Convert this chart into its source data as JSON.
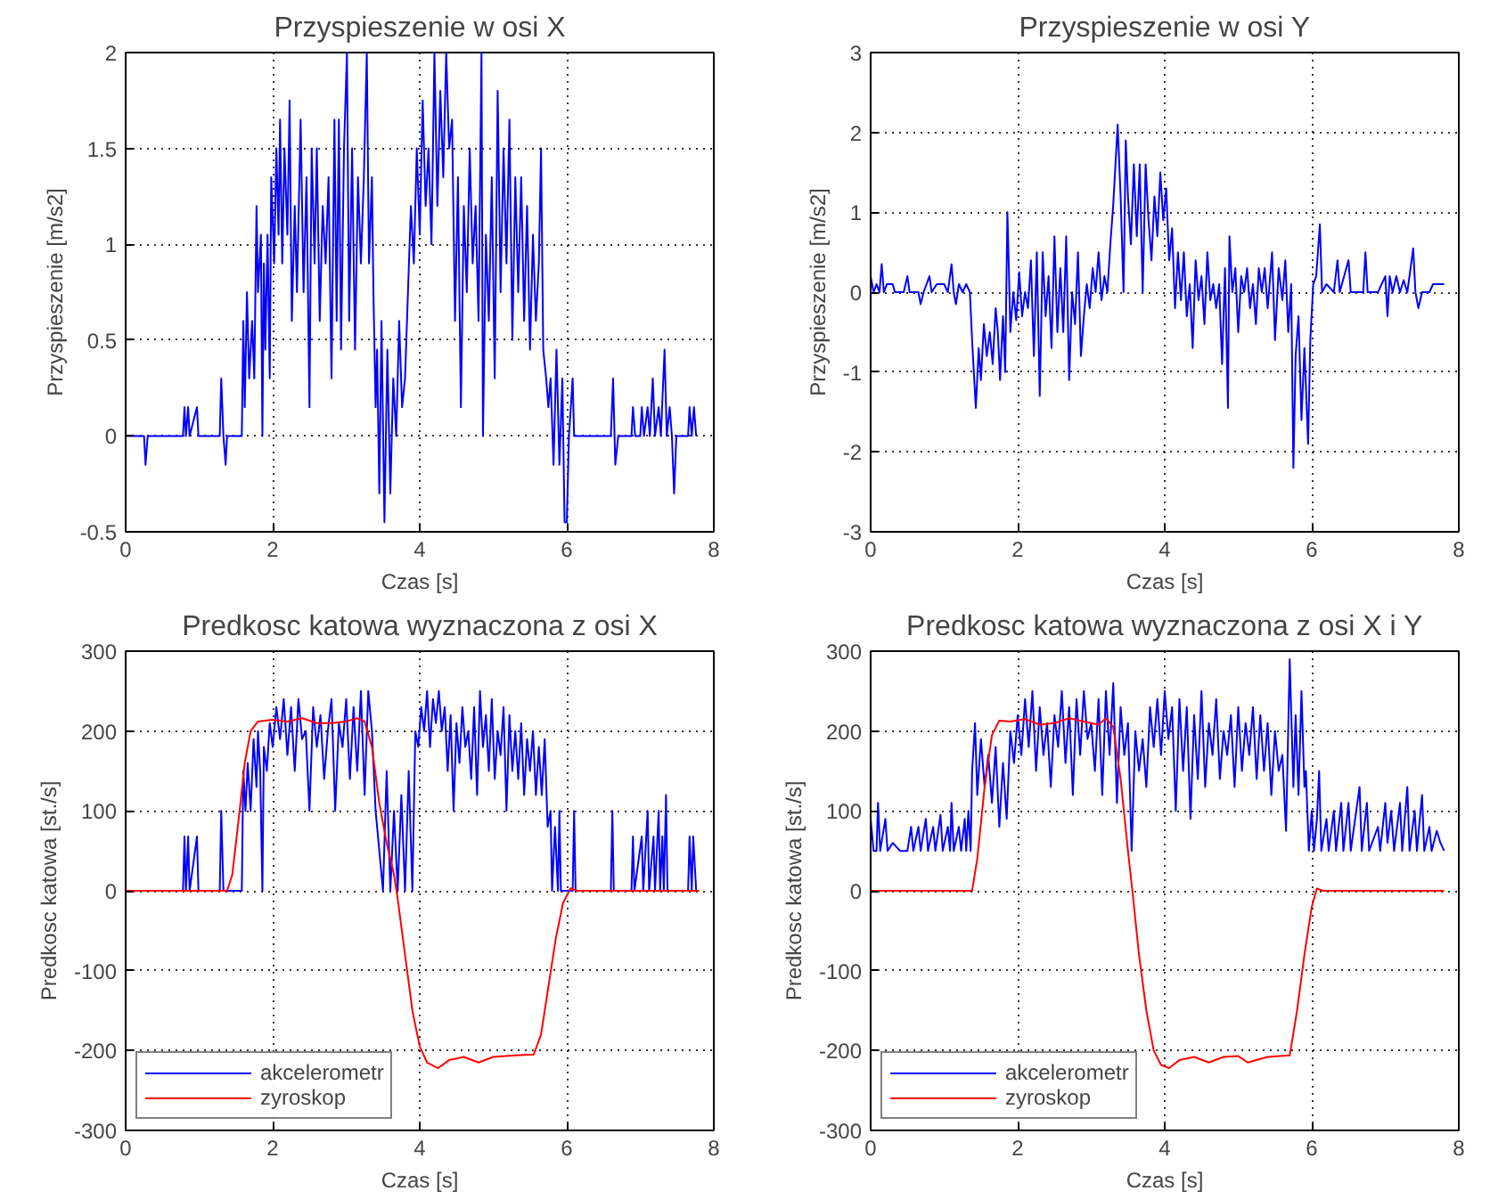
{
  "chart_data": [
    {
      "type": "line",
      "title": "Przyspieszenie w osi X",
      "xlabel": "Czas [s]",
      "ylabel": "Przyspieszenie [m/s2]",
      "xlim": [
        0,
        8
      ],
      "xticks": [
        0,
        2,
        4,
        6,
        8
      ],
      "ylim": [
        -0.5,
        2
      ],
      "yticks": [
        -0.5,
        0,
        0.5,
        1,
        1.5,
        2
      ],
      "grid": true,
      "legend": false,
      "series": [
        {
          "color": "#0000ff",
          "x": [
            0,
            0.25,
            0.27,
            0.3,
            0.78,
            0.8,
            0.82,
            0.85,
            0.87,
            0.97,
            0.99,
            1.28,
            1.3,
            1.33,
            1.36,
            1.38,
            1.58,
            1.6,
            1.62,
            1.65,
            1.68,
            1.72,
            1.75,
            1.78,
            1.8,
            1.84,
            1.86,
            1.88,
            1.9,
            1.93,
            1.96,
            1.98,
            2.02,
            2.05,
            2.08,
            2.1,
            2.13,
            2.16,
            2.2,
            2.23,
            2.26,
            2.3,
            2.33,
            2.38,
            2.42,
            2.46,
            2.5,
            2.53,
            2.57,
            2.6,
            2.64,
            2.68,
            2.72,
            2.76,
            2.8,
            2.84,
            2.87,
            2.9,
            2.93,
            2.97,
            3.01,
            3.04,
            3.08,
            3.12,
            3.16,
            3.2,
            3.24,
            3.28,
            3.31,
            3.35,
            3.37,
            3.4,
            3.42,
            3.45,
            3.48,
            3.52,
            3.56,
            3.6,
            3.64,
            3.68,
            3.72,
            3.76,
            3.8,
            3.84,
            3.88,
            3.92,
            3.96,
            4.0,
            4.04,
            4.08,
            4.12,
            4.16,
            4.2,
            4.24,
            4.28,
            4.32,
            4.36,
            4.4,
            4.44,
            4.48,
            4.52,
            4.56,
            4.6,
            4.64,
            4.68,
            4.72,
            4.76,
            4.8,
            4.84,
            4.86,
            4.9,
            4.94,
            4.98,
            5.02,
            5.06,
            5.1,
            5.14,
            5.18,
            5.22,
            5.26,
            5.3,
            5.34,
            5.38,
            5.42,
            5.46,
            5.5,
            5.54,
            5.58,
            5.62,
            5.65,
            5.68,
            5.72,
            5.75,
            5.78,
            5.82,
            5.86,
            5.9,
            5.94,
            5.97,
            6.0,
            6.03,
            6.08,
            6.1,
            6.6,
            6.63,
            6.66,
            6.7,
            6.88,
            6.9,
            6.93,
            7.0,
            7.02,
            7.05,
            7.1,
            7.13,
            7.17,
            7.2,
            7.25,
            7.28,
            7.33,
            7.36,
            7.4,
            7.43,
            7.46,
            7.49,
            7.65,
            7.67,
            7.7,
            7.73,
            7.76
          ],
          "values": [
            0,
            0,
            -0.15,
            0,
            0,
            0.15,
            0,
            0.15,
            0,
            0.15,
            0,
            0,
            0.3,
            0,
            -0.15,
            0,
            0,
            0.6,
            0.15,
            0.75,
            0.3,
            0.6,
            0.3,
            1.2,
            0.75,
            1.05,
            0,
            0.9,
            0.45,
            1.05,
            0.3,
            1.35,
            0.9,
            1.5,
            1.05,
            1.65,
            0.9,
            1.5,
            1.05,
            1.75,
            0.6,
            1.2,
            0.75,
            1.65,
            0.75,
            1.35,
            0.15,
            1.5,
            0.9,
            1.5,
            0.6,
            1.2,
            0.9,
            1.35,
            0.3,
            1.65,
            0.6,
            1.65,
            0.45,
            1.5,
            2.0,
            0.6,
            1.5,
            0.45,
            1.35,
            0.9,
            1.35,
            2.0,
            0.9,
            1.35,
            0.75,
            0.15,
            0.45,
            -0.3,
            0.6,
            -0.45,
            0.45,
            -0.3,
            0.3,
            0,
            0.6,
            0.15,
            0.3,
            0.75,
            1.2,
            0.9,
            1.5,
            1.05,
            1.75,
            1.2,
            1.5,
            1.0,
            2.0,
            1.2,
            1.8,
            1.35,
            2.0,
            1.5,
            1.65,
            0.6,
            1.35,
            0.15,
            1.2,
            0.75,
            1.5,
            0.9,
            1.2,
            0.6,
            2.0,
            0,
            1.05,
            0.6,
            1.35,
            0.3,
            1.8,
            0.75,
            1.5,
            0.9,
            1.65,
            0.5,
            1.35,
            0.75,
            1.35,
            0.6,
            1.2,
            0.45,
            1.05,
            0.6,
            0.9,
            1.5,
            0.45,
            0.3,
            0.15,
            0.3,
            -0.15,
            0.45,
            -0.15,
            0.3,
            -0.45,
            -0.45,
            0,
            0.3,
            0,
            0,
            0.3,
            -0.15,
            0,
            0,
            0.15,
            0,
            0,
            0.15,
            0,
            0.15,
            0,
            0.3,
            0,
            0.15,
            0,
            0.45,
            0,
            0.15,
            0,
            -0.3,
            0,
            0,
            0.15,
            0,
            0.15,
            0
          ]
        }
      ]
    },
    {
      "type": "line",
      "title": "Przyspieszenie w osi Y",
      "xlabel": "Czas [s]",
      "ylabel": "Przyspieszenie [m/s2]",
      "xlim": [
        0,
        8
      ],
      "xticks": [
        0,
        2,
        4,
        6,
        8
      ],
      "ylim": [
        -3,
        3
      ],
      "yticks": [
        -3,
        -2,
        -1,
        0,
        1,
        2,
        3
      ],
      "grid": true,
      "legend": false,
      "series": [
        {
          "color": "#0000ff",
          "x": [
            0,
            0.04,
            0.08,
            0.12,
            0.15,
            0.18,
            0.22,
            0.3,
            0.33,
            0.45,
            0.5,
            0.53,
            0.65,
            0.68,
            0.72,
            0.8,
            0.83,
            0.9,
            1.0,
            1.05,
            1.1,
            1.13,
            1.16,
            1.2,
            1.25,
            1.3,
            1.35,
            1.38,
            1.43,
            1.47,
            1.5,
            1.54,
            1.58,
            1.62,
            1.66,
            1.7,
            1.73,
            1.76,
            1.8,
            1.83,
            1.86,
            1.88,
            1.9,
            1.94,
            1.98,
            2.02,
            2.06,
            2.1,
            2.14,
            2.18,
            2.22,
            2.26,
            2.3,
            2.34,
            2.38,
            2.42,
            2.46,
            2.5,
            2.54,
            2.58,
            2.62,
            2.66,
            2.7,
            2.74,
            2.78,
            2.82,
            2.86,
            2.9,
            2.94,
            2.98,
            3.02,
            3.06,
            3.1,
            3.14,
            3.18,
            3.22,
            3.26,
            3.3,
            3.36,
            3.4,
            3.44,
            3.47,
            3.5,
            3.54,
            3.58,
            3.62,
            3.66,
            3.7,
            3.74,
            3.78,
            3.82,
            3.86,
            3.9,
            3.94,
            3.98,
            4.02,
            4.06,
            4.1,
            4.14,
            4.18,
            4.22,
            4.26,
            4.3,
            4.34,
            4.38,
            4.42,
            4.46,
            4.5,
            4.54,
            4.58,
            4.62,
            4.66,
            4.7,
            4.74,
            4.78,
            4.82,
            4.86,
            4.88,
            4.92,
            4.96,
            5.0,
            5.04,
            5.08,
            5.12,
            5.16,
            5.2,
            5.24,
            5.28,
            5.32,
            5.36,
            5.4,
            5.46,
            5.5,
            5.55,
            5.6,
            5.64,
            5.68,
            5.72,
            5.75,
            5.78,
            5.82,
            5.86,
            5.9,
            5.95,
            5.98,
            6.02,
            6.06,
            6.11,
            6.14,
            6.2,
            6.3,
            6.35,
            6.38,
            6.5,
            6.53,
            6.7,
            6.73,
            6.76,
            6.9,
            7.0,
            7.03,
            7.06,
            7.1,
            7.15,
            7.2,
            7.25,
            7.3,
            7.38,
            7.41,
            7.45,
            7.5,
            7.6,
            7.65,
            7.8
          ],
          "values": [
            0.2,
            0,
            0.1,
            0,
            0.35,
            0,
            0.1,
            0.1,
            0,
            0,
            0.2,
            0,
            0,
            -0.15,
            0,
            0.2,
            0,
            0.1,
            0.1,
            0,
            0.35,
            0,
            -0.15,
            0.1,
            0,
            0.1,
            0,
            -0.6,
            -1.45,
            -0.7,
            -1.1,
            -0.4,
            -0.8,
            -0.5,
            -0.9,
            -0.2,
            -0.5,
            -1.1,
            -0.3,
            -1.0,
            1.0,
            0.3,
            -0.5,
            0,
            -0.35,
            0.25,
            -0.3,
            0,
            -0.2,
            0.4,
            -0.8,
            0.5,
            -1.3,
            0.5,
            -0.3,
            0.2,
            -0.7,
            0.7,
            -0.5,
            0.3,
            -0.5,
            0.7,
            -1.1,
            0,
            -0.4,
            0.5,
            -0.8,
            -0.3,
            0.1,
            -0.2,
            0.3,
            0,
            0.5,
            -0.1,
            0.2,
            0,
            0.6,
            1.1,
            2.1,
            1.2,
            0,
            1.9,
            1.2,
            0.6,
            1.6,
            0.7,
            1.6,
            0,
            1.6,
            0.9,
            0.4,
            1.2,
            0.7,
            1.5,
            0.9,
            1.3,
            0.4,
            0.8,
            -0.2,
            0.5,
            -0.1,
            0.5,
            -0.3,
            0.1,
            -0.7,
            0.4,
            -0.1,
            0.2,
            -0.4,
            0.5,
            -0.1,
            0.1,
            -0.2,
            0.1,
            -0.9,
            0.3,
            -1.45,
            0.7,
            0,
            0.3,
            -0.5,
            0.2,
            0,
            0.3,
            -0.2,
            0.1,
            -0.4,
            0.3,
            0,
            0.3,
            -0.2,
            0.5,
            -0.6,
            0.3,
            -0.1,
            0.4,
            -0.5,
            0.1,
            -2.2,
            -0.8,
            -0.3,
            -1.6,
            -0.7,
            -1.9,
            -0.6,
            0.1,
            0.2,
            0.85,
            0,
            0.1,
            0,
            0.4,
            0,
            0.4,
            0,
            0,
            0.5,
            0,
            0,
            0.2,
            -0.3,
            0.2,
            0,
            0.2,
            0,
            0.15,
            0,
            0.55,
            0,
            -0.2,
            0,
            0,
            0.1,
            0.1
          ]
        }
      ]
    },
    {
      "type": "line",
      "title": "Predkosc katowa wyznaczona z osi X",
      "xlabel": "Czas [s]",
      "ylabel": "Predkosc katowa [st./s]",
      "xlim": [
        0,
        8
      ],
      "xticks": [
        0,
        2,
        4,
        6,
        8
      ],
      "ylim": [
        -300,
        300
      ],
      "yticks": [
        -300,
        -200,
        -100,
        0,
        100,
        200,
        300
      ],
      "grid": true,
      "legend": "bottom left",
      "series": [
        {
          "name": "akcelerometr",
          "color": "#0000ff",
          "x": [
            0,
            0.78,
            0.8,
            0.82,
            0.85,
            0.87,
            0.97,
            0.99,
            1.28,
            1.3,
            1.33,
            1.58,
            1.6,
            1.63,
            1.66,
            1.7,
            1.74,
            1.78,
            1.8,
            1.83,
            1.86,
            1.88,
            1.92,
            1.96,
            2.0,
            2.05,
            2.1,
            2.15,
            2.2,
            2.25,
            2.3,
            2.35,
            2.4,
            2.45,
            2.5,
            2.55,
            2.6,
            2.65,
            2.7,
            2.75,
            2.8,
            2.85,
            2.9,
            2.95,
            3.0,
            3.05,
            3.1,
            3.15,
            3.2,
            3.25,
            3.3,
            3.35,
            3.4,
            3.45,
            3.5,
            3.55,
            3.6,
            3.65,
            3.7,
            3.75,
            3.8,
            3.85,
            3.9,
            3.94,
            3.98,
            4.02,
            4.06,
            4.1,
            4.14,
            4.18,
            4.22,
            4.26,
            4.3,
            4.34,
            4.38,
            4.42,
            4.46,
            4.5,
            4.54,
            4.58,
            4.62,
            4.66,
            4.7,
            4.74,
            4.78,
            4.82,
            4.86,
            4.9,
            4.94,
            4.98,
            5.02,
            5.06,
            5.1,
            5.14,
            5.18,
            5.22,
            5.26,
            5.3,
            5.34,
            5.38,
            5.42,
            5.46,
            5.5,
            5.54,
            5.58,
            5.62,
            5.66,
            5.7,
            5.74,
            5.78,
            5.8,
            5.84,
            5.88,
            5.9,
            5.92,
            6.08,
            6.1,
            6.12,
            6.6,
            6.62,
            6.64,
            6.88,
            6.9,
            6.92,
            7.02,
            7.04,
            7.1,
            7.12,
            7.18,
            7.2,
            7.25,
            7.27,
            7.3,
            7.32,
            7.35,
            7.37,
            7.65,
            7.67,
            7.7,
            7.72,
            7.76
          ],
          "values": [
            0,
            0,
            68,
            0,
            68,
            0,
            68,
            0,
            0,
            100,
            0,
            0,
            150,
            100,
            160,
            100,
            190,
            130,
            200,
            150,
            0,
            180,
            150,
            210,
            180,
            230,
            190,
            240,
            170,
            230,
            150,
            240,
            190,
            200,
            100,
            230,
            180,
            220,
            140,
            200,
            240,
            100,
            210,
            180,
            240,
            140,
            230,
            150,
            250,
            120,
            250,
            200,
            100,
            50,
            0,
            150,
            0,
            100,
            0,
            120,
            0,
            150,
            0,
            200,
            180,
            230,
            200,
            250,
            180,
            240,
            210,
            250,
            200,
            230,
            150,
            220,
            100,
            210,
            160,
            230,
            180,
            200,
            140,
            230,
            120,
            250,
            180,
            220,
            150,
            240,
            140,
            200,
            170,
            230,
            100,
            220,
            150,
            200,
            140,
            210,
            120,
            190,
            150,
            200,
            120,
            180,
            120,
            190,
            80,
            100,
            0,
            80,
            0,
            100,
            0,
            0,
            100,
            0,
            0,
            100,
            0,
            0,
            68,
            0,
            68,
            0,
            100,
            0,
            68,
            0,
            100,
            0,
            68,
            0,
            120,
            0,
            0,
            68,
            0,
            68,
            0
          ]
        },
        {
          "name": "zyroskop",
          "color": "#ff0000",
          "x": [
            0,
            1.38,
            1.45,
            1.55,
            1.62,
            1.7,
            1.8,
            2.0,
            2.2,
            2.4,
            2.6,
            2.8,
            3.0,
            3.15,
            3.25,
            3.35,
            3.45,
            3.55,
            3.65,
            3.7,
            3.8,
            3.9,
            4.0,
            4.1,
            4.25,
            4.4,
            4.6,
            4.8,
            5.0,
            5.3,
            5.55,
            5.65,
            5.75,
            5.85,
            5.95,
            6.05,
            6.15,
            7.8
          ],
          "values": [
            0,
            0,
            20,
            100,
            160,
            200,
            212,
            214,
            212,
            216,
            210,
            210,
            212,
            216,
            212,
            180,
            110,
            60,
            20,
            -10,
            -80,
            -150,
            -195,
            -215,
            -222,
            -212,
            -208,
            -215,
            -208,
            -206,
            -205,
            -180,
            -120,
            -60,
            -15,
            3,
            0,
            0
          ]
        }
      ]
    },
    {
      "type": "line",
      "title": "Predkosc katowa wyznaczona z osi X i Y",
      "xlabel": "Czas [s]",
      "ylabel": "Predkosc katowa [st./s]",
      "xlim": [
        0,
        8
      ],
      "xticks": [
        0,
        2,
        4,
        6,
        8
      ],
      "ylim": [
        -300,
        300
      ],
      "yticks": [
        -300,
        -200,
        -100,
        0,
        100,
        200,
        300
      ],
      "grid": true,
      "legend": "bottom left",
      "series": [
        {
          "name": "akcelerometr",
          "color": "#0000ff",
          "x": [
            0,
            0.04,
            0.08,
            0.1,
            0.13,
            0.2,
            0.23,
            0.3,
            0.4,
            0.5,
            0.55,
            0.58,
            0.65,
            0.68,
            0.75,
            0.78,
            0.85,
            0.88,
            0.95,
            0.98,
            1.05,
            1.08,
            1.1,
            1.13,
            1.2,
            1.23,
            1.28,
            1.3,
            1.33,
            1.36,
            1.38,
            1.42,
            1.45,
            1.5,
            1.55,
            1.6,
            1.65,
            1.7,
            1.75,
            1.8,
            1.85,
            1.9,
            1.95,
            2.0,
            2.05,
            2.1,
            2.15,
            2.2,
            2.25,
            2.3,
            2.35,
            2.4,
            2.45,
            2.5,
            2.55,
            2.6,
            2.65,
            2.7,
            2.75,
            2.8,
            2.85,
            2.9,
            2.95,
            3.0,
            3.05,
            3.1,
            3.15,
            3.2,
            3.25,
            3.3,
            3.35,
            3.4,
            3.45,
            3.5,
            3.55,
            3.6,
            3.65,
            3.7,
            3.75,
            3.8,
            3.85,
            3.9,
            3.95,
            4.0,
            4.05,
            4.1,
            4.15,
            4.2,
            4.25,
            4.3,
            4.35,
            4.4,
            4.45,
            4.5,
            4.55,
            4.6,
            4.65,
            4.7,
            4.75,
            4.8,
            4.85,
            4.9,
            4.95,
            5.0,
            5.05,
            5.1,
            5.15,
            5.2,
            5.25,
            5.3,
            5.35,
            5.4,
            5.45,
            5.5,
            5.55,
            5.6,
            5.65,
            5.7,
            5.75,
            5.78,
            5.82,
            5.86,
            5.9,
            5.92,
            5.96,
            6.0,
            6.03,
            6.07,
            6.1,
            6.13,
            6.2,
            6.23,
            6.3,
            6.33,
            6.4,
            6.43,
            6.5,
            6.53,
            6.65,
            6.68,
            6.75,
            6.78,
            6.9,
            6.93,
            7.0,
            7.03,
            7.08,
            7.12,
            7.2,
            7.23,
            7.3,
            7.33,
            7.4,
            7.43,
            7.5,
            7.53,
            7.6,
            7.63,
            7.7,
            7.75,
            7.8
          ],
          "values": [
            90,
            50,
            50,
            110,
            50,
            90,
            50,
            60,
            50,
            50,
            80,
            50,
            80,
            50,
            90,
            50,
            80,
            50,
            95,
            50,
            80,
            50,
            110,
            50,
            80,
            50,
            90,
            50,
            100,
            50,
            150,
            210,
            120,
            190,
            130,
            170,
            110,
            180,
            80,
            160,
            90,
            200,
            160,
            220,
            170,
            240,
            180,
            250,
            150,
            230,
            170,
            210,
            130,
            220,
            180,
            250,
            160,
            230,
            120,
            240,
            170,
            250,
            190,
            210,
            150,
            240,
            120,
            250,
            170,
            260,
            110,
            230,
            170,
            210,
            50,
            200,
            150,
            190,
            130,
            230,
            180,
            240,
            170,
            250,
            190,
            230,
            100,
            240,
            150,
            230,
            90,
            220,
            140,
            250,
            130,
            210,
            170,
            240,
            140,
            200,
            170,
            220,
            130,
            230,
            150,
            210,
            170,
            230,
            140,
            220,
            150,
            210,
            120,
            200,
            150,
            170,
            75,
            290,
            130,
            220,
            120,
            250,
            130,
            150,
            50,
            100,
            50,
            90,
            150,
            50,
            90,
            50,
            100,
            50,
            110,
            50,
            110,
            50,
            130,
            50,
            110,
            50,
            80,
            50,
            110,
            60,
            100,
            50,
            110,
            50,
            130,
            50,
            100,
            50,
            120,
            50,
            80,
            50,
            75,
            60,
            50
          ]
        },
        {
          "name": "zyroskop",
          "color": "#ff0000",
          "x": [
            0,
            1.38,
            1.45,
            1.55,
            1.65,
            1.75,
            1.9,
            2.1,
            2.3,
            2.5,
            2.7,
            2.9,
            3.1,
            3.2,
            3.3,
            3.4,
            3.5,
            3.56,
            3.65,
            3.75,
            3.85,
            3.95,
            4.06,
            4.2,
            4.4,
            4.6,
            4.8,
            5.0,
            5.13,
            5.4,
            5.7,
            5.8,
            5.9,
            6.0,
            6.07,
            6.15,
            7.8
          ],
          "values": [
            0,
            0,
            40,
            130,
            195,
            213,
            212,
            215,
            208,
            210,
            216,
            212,
            208,
            216,
            205,
            140,
            50,
            0,
            -80,
            -150,
            -200,
            -218,
            -222,
            -212,
            -208,
            -215,
            -208,
            -207,
            -215,
            -208,
            -206,
            -150,
            -80,
            -20,
            3,
            0,
            0
          ]
        }
      ]
    }
  ]
}
